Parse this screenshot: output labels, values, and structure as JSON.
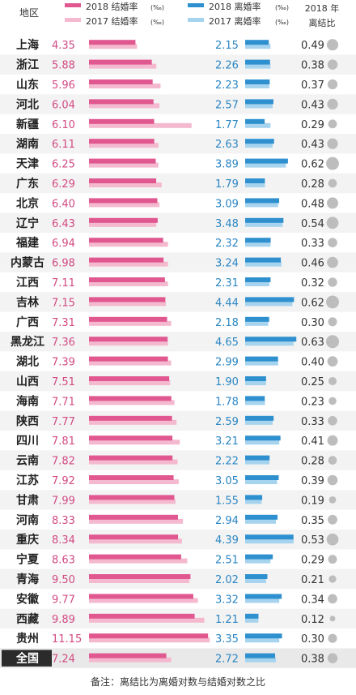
{
  "legend": {
    "region_header": "地区",
    "marriage_2018": "2018 结婚率",
    "marriage_2017": "2017 结婚率",
    "divorce_2018": "2018 离婚率",
    "divorce_2017": "2017 离婚率",
    "unit": "(‰)",
    "ratio_header_line1": "2018 年",
    "ratio_header_line2": "离结比"
  },
  "colors": {
    "marriage_2018": "#e0588f",
    "marriage_2017": "#f4b9cf",
    "divorce_2018": "#2f90cf",
    "divorce_2017": "#a6d3ee",
    "marriage_text": "#d24a82",
    "divorce_text": "#2a86c4",
    "row_alt": "#f3f3f3",
    "total_label_bg": "#2b2b2b",
    "circle": "#bdbdbd"
  },
  "note": "备注：离结比为离婚对数与结婚对数之比",
  "chart_data": {
    "type": "bar",
    "categories": [
      "上海",
      "浙江",
      "山东",
      "河北",
      "新疆",
      "湖南",
      "天津",
      "广东",
      "北京",
      "辽宁",
      "福建",
      "内蒙古",
      "江西",
      "吉林",
      "广西",
      "黑龙江",
      "湖北",
      "山西",
      "海南",
      "陕西",
      "四川",
      "云南",
      "江苏",
      "甘肃",
      "河南",
      "重庆",
      "宁夏",
      "青海",
      "安徽",
      "西藏",
      "贵州",
      "全国"
    ],
    "series": [
      {
        "name": "2018 结婚率",
        "values": [
          4.35,
          5.88,
          5.96,
          6.04,
          6.1,
          6.11,
          6.25,
          6.29,
          6.4,
          6.43,
          6.94,
          6.98,
          7.11,
          7.15,
          7.31,
          7.36,
          7.39,
          7.51,
          7.71,
          7.77,
          7.81,
          7.82,
          7.92,
          7.99,
          8.33,
          8.34,
          8.63,
          9.5,
          9.77,
          9.89,
          11.15,
          7.24
        ]
      },
      {
        "name": "2017 结婚率",
        "values": [
          4.5,
          6.3,
          6.7,
          6.6,
          9.6,
          6.5,
          6.5,
          6.8,
          6.6,
          6.3,
          7.4,
          7.4,
          7.4,
          7.2,
          7.7,
          7.4,
          7.7,
          7.6,
          8.0,
          8.2,
          8.5,
          8.3,
          8.4,
          8.1,
          8.8,
          8.7,
          9.2,
          9.4,
          10.2,
          10.8,
          11.3,
          7.7
        ]
      },
      {
        "name": "2018 离婚率",
        "values": [
          2.15,
          2.26,
          2.23,
          2.57,
          1.77,
          2.63,
          3.89,
          1.79,
          3.09,
          3.48,
          2.32,
          3.24,
          2.31,
          4.44,
          2.18,
          4.65,
          2.99,
          1.9,
          1.78,
          2.59,
          3.21,
          2.22,
          3.05,
          1.55,
          2.94,
          4.39,
          2.51,
          2.02,
          3.32,
          1.21,
          3.35,
          2.72
        ]
      },
      {
        "name": "2017 离婚率",
        "values": [
          2.3,
          2.3,
          2.2,
          2.5,
          2.3,
          2.5,
          3.7,
          1.8,
          3.0,
          3.4,
          2.3,
          3.3,
          2.2,
          4.3,
          2.1,
          4.4,
          3.0,
          1.9,
          1.8,
          2.5,
          3.1,
          2.2,
          2.9,
          1.5,
          2.8,
          4.4,
          2.3,
          1.9,
          3.1,
          1.2,
          3.1,
          2.8
        ]
      }
    ],
    "ratio_2018": [
      "0.49",
      "0.38",
      "0.37",
      "0.43",
      "0.29",
      "0.43",
      "0.62",
      "0.28",
      "0.48",
      "0.54",
      "0.33",
      "0.46",
      "0.32",
      "0.62",
      "0.30",
      "0.63",
      "0.40",
      "0.25",
      "0.23",
      "0.33",
      "0.41",
      "0.28",
      "0.39",
      "0.19",
      "0.35",
      "0.53",
      "0.29",
      "0.21",
      "0.34",
      "0.12",
      "0.30",
      "0.38"
    ],
    "ratio_values": [
      0.49,
      0.38,
      0.37,
      0.43,
      0.29,
      0.43,
      0.62,
      0.28,
      0.48,
      0.54,
      0.33,
      0.46,
      0.32,
      0.62,
      0.3,
      0.63,
      0.4,
      0.25,
      0.23,
      0.33,
      0.41,
      0.28,
      0.39,
      0.19,
      0.35,
      0.53,
      0.29,
      0.21,
      0.34,
      0.12,
      0.3,
      0.38
    ],
    "marriage_labels": [
      "4.35",
      "5.88",
      "5.96",
      "6.04",
      "6.10",
      "6.11",
      "6.25",
      "6.29",
      "6.40",
      "6.43",
      "6.94",
      "6.98",
      "7.11",
      "7.15",
      "7.31",
      "7.36",
      "7.39",
      "7.51",
      "7.71",
      "7.77",
      "7.81",
      "7.82",
      "7.92",
      "7.99",
      "8.33",
      "8.34",
      "8.63",
      "9.50",
      "9.77",
      "9.89",
      "11.15",
      "7.24"
    ],
    "divorce_labels": [
      "2.15",
      "2.26",
      "2.23",
      "2.57",
      "1.77",
      "2.63",
      "3.89",
      "1.79",
      "3.09",
      "3.48",
      "2.32",
      "3.24",
      "2.31",
      "4.44",
      "2.18",
      "4.65",
      "2.99",
      "1.90",
      "1.78",
      "2.59",
      "3.21",
      "2.22",
      "3.05",
      "1.55",
      "2.94",
      "4.39",
      "2.51",
      "2.02",
      "3.32",
      "1.21",
      "3.35",
      "2.72"
    ],
    "marriage_axis_max": 12,
    "divorce_axis_max": 5
  }
}
